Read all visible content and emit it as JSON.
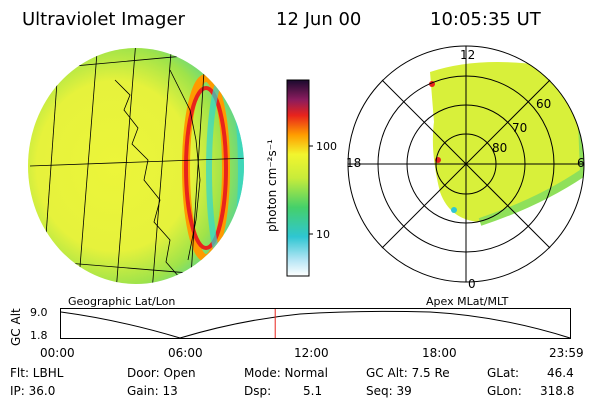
{
  "header": {
    "instrument": "Ultraviolet Imager",
    "date": "12 Jun 00",
    "time": "10:05:35 UT"
  },
  "colorbar": {
    "unit_label": "photon cm⁻²s⁻¹",
    "tick_100": "100",
    "tick_10": "10"
  },
  "polar_plot": {
    "mlt_12": "12",
    "mlt_18": "18",
    "mlt_6": "6",
    "mlt_0": "0",
    "lat_60": "60",
    "lat_70": "70",
    "lat_80": "80"
  },
  "map_labels": {
    "geo": "Geographic Lat/Lon",
    "apex": "Apex MLat/MLT"
  },
  "altitude_plot": {
    "axis_label": "GC Alt",
    "y_top": "9.0",
    "y_bottom": "1.8",
    "x_ticks": [
      "00:00",
      "06:00",
      "12:00",
      "18:00",
      "23:59"
    ],
    "current_time_marker_hours": 10.1
  },
  "status": {
    "flt": "Flt: LBHL",
    "ip": "IP: 36.0",
    "door": "Door: Open",
    "gain": "Gain: 13",
    "mode": "Mode: Normal",
    "dsp_label": "Dsp:",
    "dsp_value": "5.1",
    "gc_alt": "GC Alt: 7.5 Re",
    "seq": "Seq: 39",
    "glat_label": "GLat:",
    "glat_value": "46.4",
    "glon_label": "GLon:",
    "glon_value": "318.8"
  }
}
